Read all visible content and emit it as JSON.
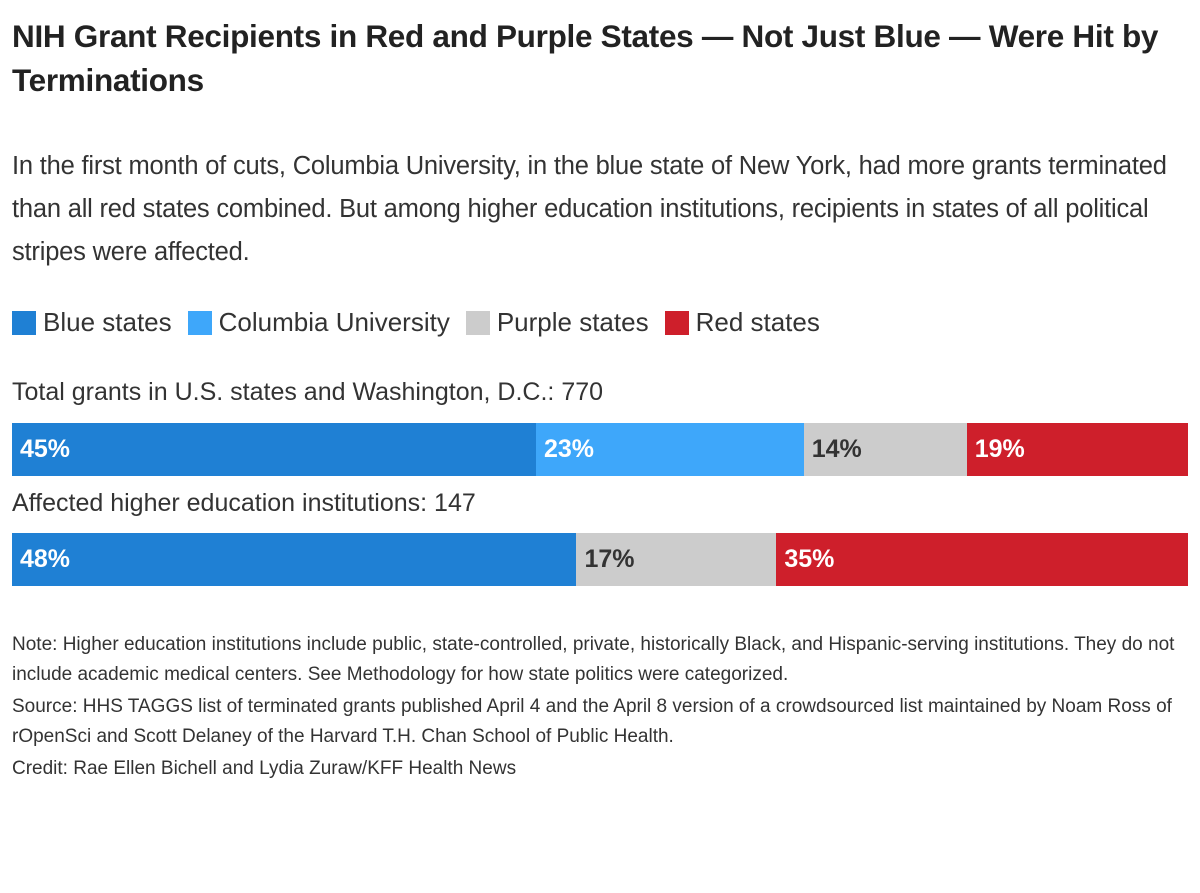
{
  "chart_data": {
    "type": "bar",
    "orientation": "horizontal-stacked-100",
    "title": "NIH Grant Recipients in Red and Purple States — Not Just Blue — Were Hit by Terminations",
    "subtitle": "In the first month of cuts, Columbia University, in the blue state of New York, had more grants terminated than all red states combined. But among higher education institutions, recipients in states of all political stripes were affected.",
    "legend": [
      {
        "name": "Blue states",
        "color": "#1f80d4"
      },
      {
        "name": "Columbia University",
        "color": "#3ea7fa"
      },
      {
        "name": "Purple states",
        "color": "#cccccc"
      },
      {
        "name": "Red states",
        "color": "#ce1f2b"
      }
    ],
    "legend_position": "top",
    "rows": [
      {
        "label": "Total grants in U.S. states and Washington, D.C.: 770",
        "segments": [
          {
            "series": "Blue states",
            "value": 45,
            "label": "45%",
            "text_color": "#ffffff"
          },
          {
            "series": "Columbia University",
            "value": 23,
            "label": "23%",
            "text_color": "#ffffff"
          },
          {
            "series": "Purple states",
            "value": 14,
            "label": "14%",
            "text_color": "#333333"
          },
          {
            "series": "Red states",
            "value": 19,
            "label": "19%",
            "text_color": "#ffffff"
          }
        ]
      },
      {
        "label": "Affected higher education institutions: 147",
        "segments": [
          {
            "series": "Blue states",
            "value": 48,
            "label": "48%",
            "text_color": "#ffffff"
          },
          {
            "series": "Purple states",
            "value": 17,
            "label": "17%",
            "text_color": "#333333"
          },
          {
            "series": "Red states",
            "value": 35,
            "label": "35%",
            "text_color": "#ffffff"
          }
        ]
      }
    ],
    "unit": "%"
  },
  "notes": {
    "note": "Note: Higher education institutions include public, state-controlled, private, historically Black, and Hispanic-serving institutions. They do not include academic medical centers. See Methodology for how state politics were categorized.",
    "source": "Source: HHS TAGGS list of terminated grants published April 4 and the April 8 version of a crowdsourced list maintained by Noam Ross of rOpenSci and Scott Delaney of the Harvard T.H. Chan School of Public Health.",
    "credit": "Credit: Rae Ellen Bichell and Lydia Zuraw/KFF Health News"
  }
}
